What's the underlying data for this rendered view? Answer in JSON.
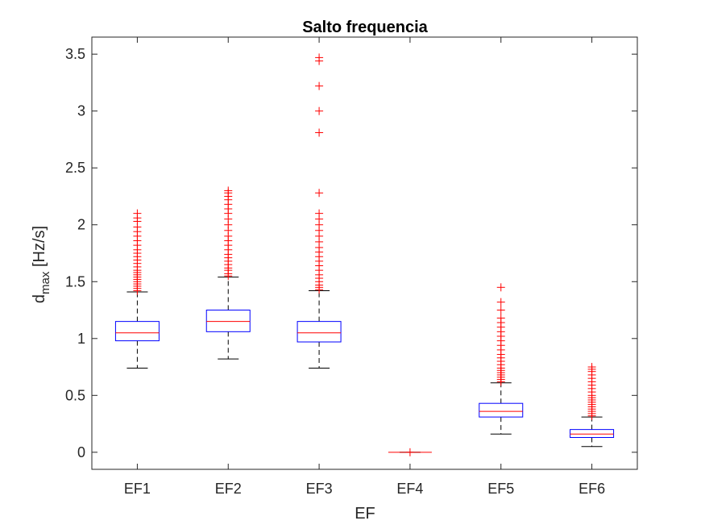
{
  "chart_data": {
    "type": "box",
    "title": "Salto frequencia",
    "xlabel": "EF",
    "ylabel_main": "d",
    "ylabel_sub": "max",
    "ylabel_unit": " [Hz/s]",
    "ylim": [
      -0.15,
      3.65
    ],
    "yticks": [
      0,
      0.5,
      1,
      1.5,
      2,
      2.5,
      3,
      3.5
    ],
    "ytick_labels": [
      "0",
      "0.5",
      "1",
      "1.5",
      "2",
      "2.5",
      "3",
      "3.5"
    ],
    "grid": false,
    "categories": [
      "EF1",
      "EF2",
      "EF3",
      "EF4",
      "EF5",
      "EF6"
    ],
    "boxes": [
      {
        "category": "EF1",
        "whisker_low": 0.74,
        "q1": 0.98,
        "median": 1.05,
        "q3": 1.15,
        "whisker_high": 1.41,
        "outliers": [
          1.42,
          1.44,
          1.46,
          1.48,
          1.5,
          1.52,
          1.54,
          1.56,
          1.58,
          1.6,
          1.63,
          1.66,
          1.69,
          1.72,
          1.75,
          1.78,
          1.82,
          1.86,
          1.9,
          1.94,
          1.98,
          2.03,
          2.06,
          2.1
        ]
      },
      {
        "category": "EF2",
        "whisker_low": 0.82,
        "q1": 1.06,
        "median": 1.15,
        "q3": 1.25,
        "whisker_high": 1.54,
        "outliers": [
          1.55,
          1.57,
          1.6,
          1.62,
          1.65,
          1.68,
          1.71,
          1.74,
          1.78,
          1.82,
          1.86,
          1.9,
          1.95,
          2.0,
          2.05,
          2.1,
          2.14,
          2.18,
          2.22,
          2.25,
          2.28,
          2.3
        ]
      },
      {
        "category": "EF3",
        "whisker_low": 0.74,
        "q1": 0.97,
        "median": 1.05,
        "q3": 1.15,
        "whisker_high": 1.42,
        "outliers": [
          1.43,
          1.45,
          1.47,
          1.5,
          1.53,
          1.56,
          1.6,
          1.64,
          1.68,
          1.72,
          1.76,
          1.8,
          1.85,
          1.9,
          1.95,
          2.0,
          2.05,
          2.1,
          2.28,
          2.81,
          3.0,
          3.22,
          3.44,
          3.47
        ]
      },
      {
        "category": "EF4",
        "whisker_low": 0,
        "q1": 0,
        "median": 0,
        "q3": 0,
        "whisker_high": 0,
        "outliers": [
          0
        ]
      },
      {
        "category": "EF5",
        "whisker_low": 0.16,
        "q1": 0.31,
        "median": 0.36,
        "q3": 0.43,
        "whisker_high": 0.61,
        "outliers": [
          0.62,
          0.64,
          0.66,
          0.68,
          0.7,
          0.72,
          0.74,
          0.77,
          0.8,
          0.83,
          0.86,
          0.9,
          0.94,
          0.98,
          1.02,
          1.06,
          1.1,
          1.14,
          1.18,
          1.25,
          1.32,
          1.45
        ]
      },
      {
        "category": "EF6",
        "whisker_low": 0.05,
        "q1": 0.13,
        "median": 0.16,
        "q3": 0.2,
        "whisker_high": 0.31,
        "outliers": [
          0.32,
          0.34,
          0.36,
          0.38,
          0.4,
          0.42,
          0.44,
          0.46,
          0.48,
          0.5,
          0.53,
          0.56,
          0.59,
          0.62,
          0.65,
          0.68,
          0.71,
          0.73,
          0.75
        ]
      }
    ],
    "colors": {
      "box": "#0000ff",
      "median": "#ff0000",
      "outlier": "#ff0000",
      "whisker": "#000000",
      "axes": "#262626"
    }
  }
}
